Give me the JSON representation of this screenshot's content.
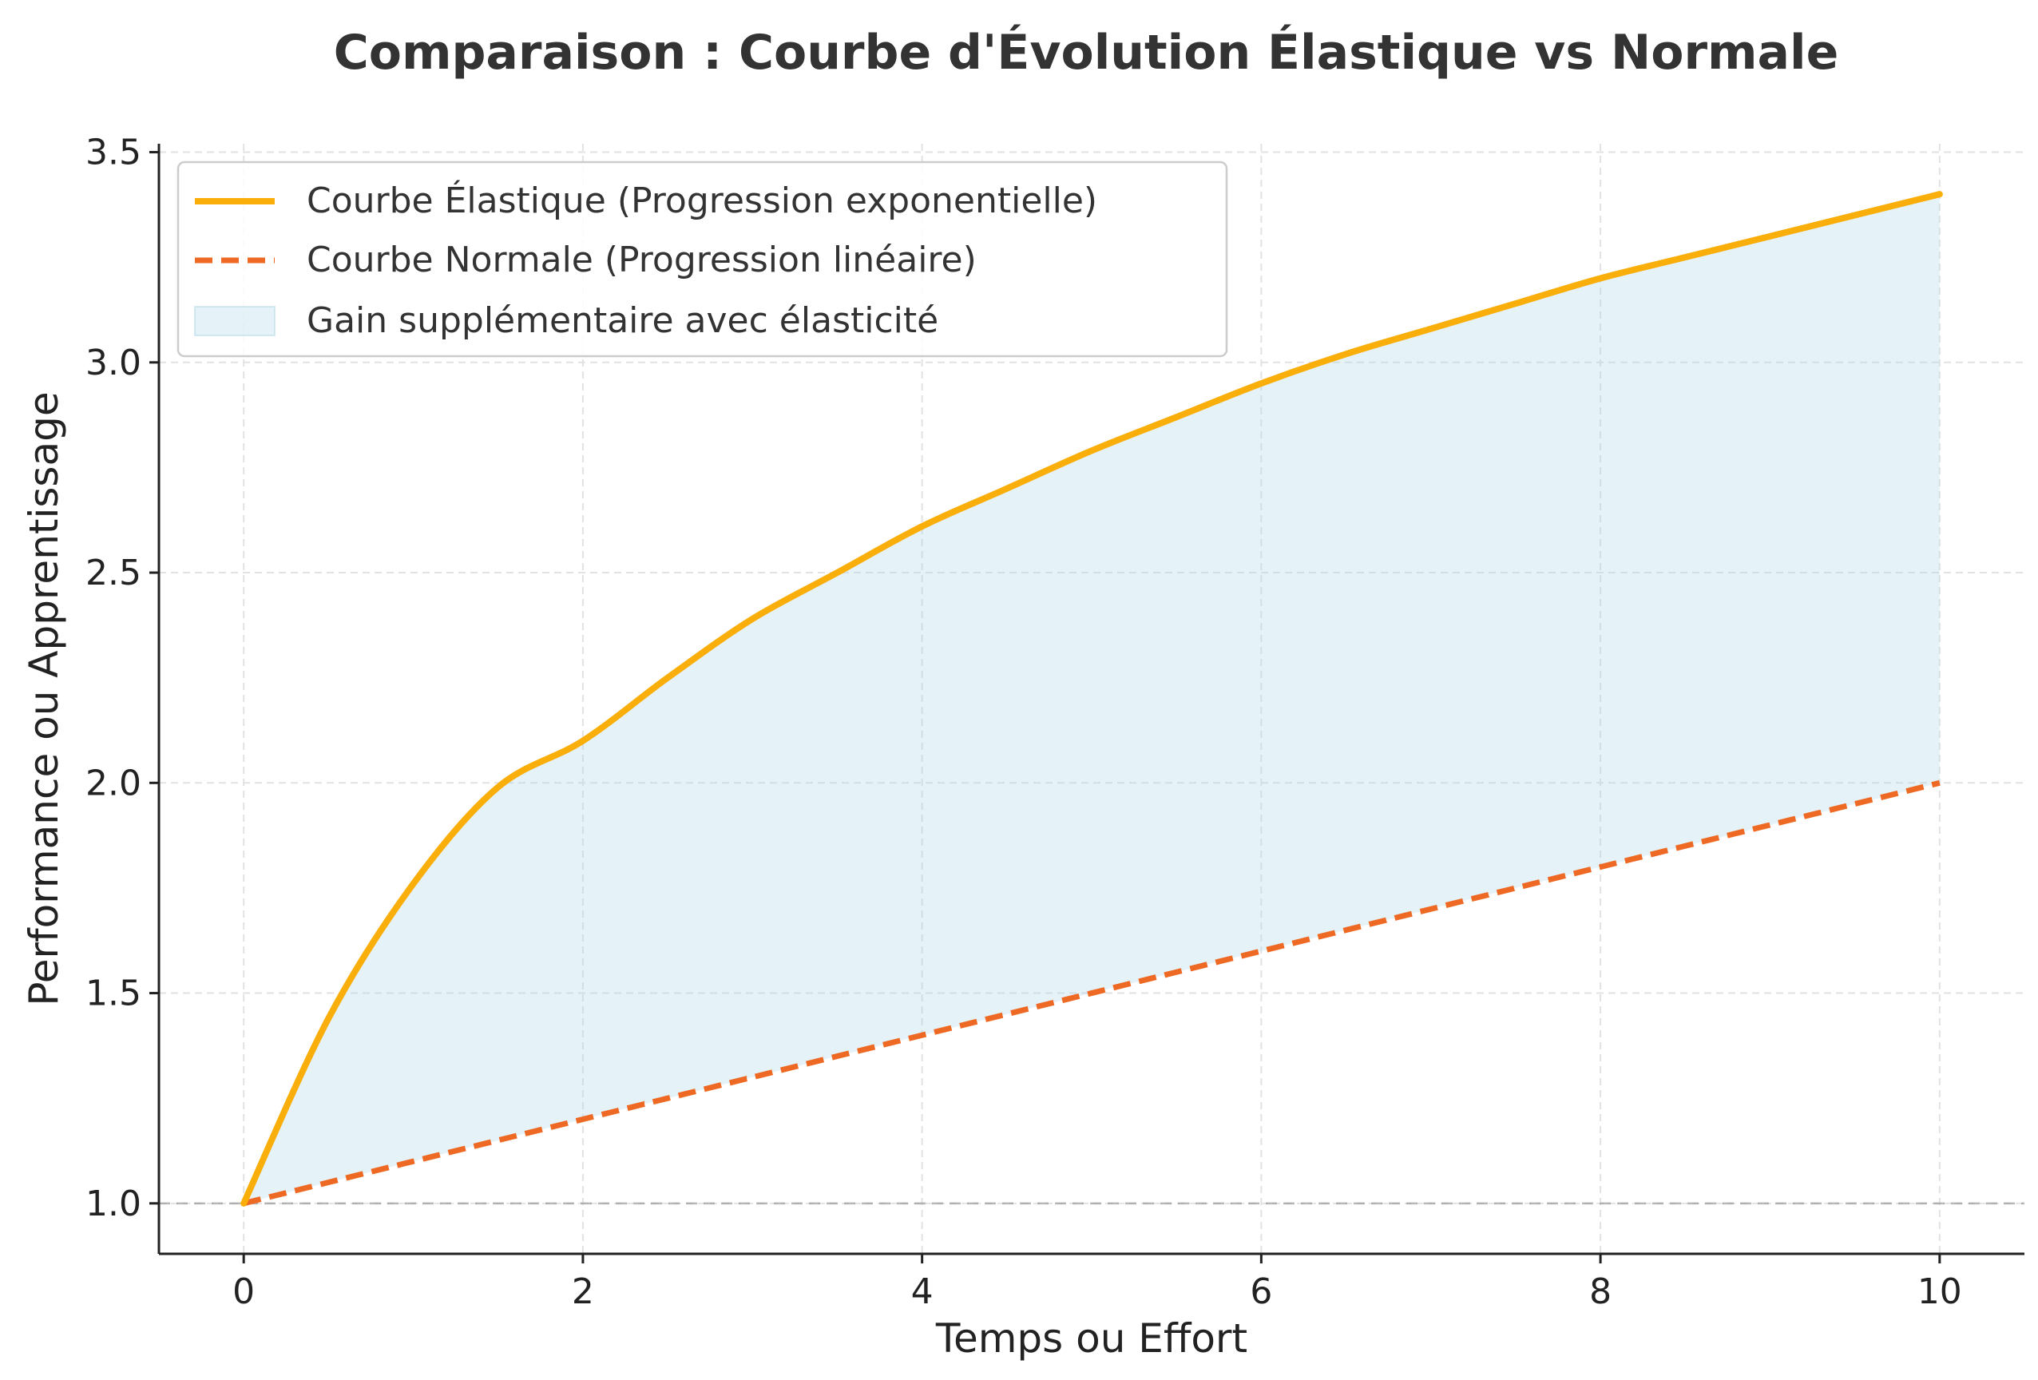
{
  "chart_data": {
    "type": "line",
    "title": "Comparaison : Courbe d'Évolution Élastique vs Normale",
    "xlabel": "Temps ou Effort",
    "ylabel": "Performance ou Apprentissage",
    "xlim": [
      -0.5,
      10.5
    ],
    "ylim": [
      0.88,
      3.52
    ],
    "x_ticks": [
      0,
      2,
      4,
      6,
      8,
      10
    ],
    "y_ticks": [
      1.0,
      1.5,
      2.0,
      2.5,
      3.0,
      3.5
    ],
    "x_tick_labels": [
      "0",
      "2",
      "4",
      "6",
      "8",
      "10"
    ],
    "y_tick_labels": [
      "1.0",
      "1.5",
      "2.0",
      "2.5",
      "3.0",
      "3.5"
    ],
    "grid": true,
    "legend_position": "top-left",
    "reference_line_y": 1.0,
    "x": [
      0,
      0.5,
      1,
      1.5,
      2,
      2.5,
      3,
      3.5,
      4,
      4.5,
      5,
      5.5,
      6,
      6.5,
      7,
      7.5,
      8,
      8.5,
      9,
      9.5,
      10
    ],
    "series": [
      {
        "name": "Courbe Élastique (Progression exponentielle)",
        "style": "solid",
        "color": "#F9AE0A",
        "values": [
          1.0,
          1.44,
          1.76,
          1.99,
          2.1,
          2.25,
          2.39,
          2.5,
          2.61,
          2.7,
          2.79,
          2.87,
          2.95,
          3.02,
          3.08,
          3.14,
          3.2,
          3.25,
          3.3,
          3.35,
          3.4
        ]
      },
      {
        "name": "Courbe Normale (Progression linéaire)",
        "style": "dashed",
        "color": "#EE6A24",
        "values": [
          1.0,
          1.05,
          1.1,
          1.15,
          1.2,
          1.25,
          1.3,
          1.35,
          1.4,
          1.45,
          1.5,
          1.55,
          1.6,
          1.65,
          1.7,
          1.75,
          1.8,
          1.85,
          1.9,
          1.95,
          2.0
        ]
      }
    ],
    "fill_between": {
      "name": "Gain supplémentaire avec élasticité",
      "color": "#ADD8E6"
    }
  }
}
